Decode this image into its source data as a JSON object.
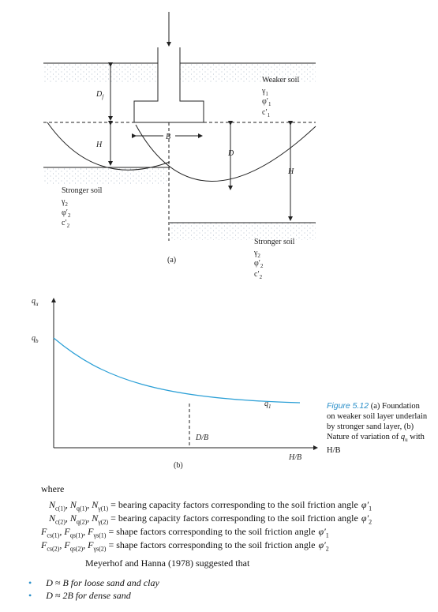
{
  "figure_a": {
    "weaker_soil": {
      "name": "Weaker soil",
      "gamma": {
        "main": "γ",
        "sub": "1"
      },
      "phi": {
        "main": "φ′",
        "sub": "1"
      },
      "c": {
        "main": "c′",
        "sub": "1"
      }
    },
    "df": {
      "main": "D",
      "sub": "f"
    },
    "h_left": "H",
    "b": "B",
    "d": "D",
    "h_right": "H",
    "stronger_left": {
      "name": "Stronger soil",
      "gamma": {
        "main": "γ",
        "sub": "2"
      },
      "phi": {
        "main": "φ′",
        "sub": "2"
      },
      "c": {
        "main": "c′",
        "sub": "2"
      }
    },
    "stronger_right": {
      "name": "Stronger soil",
      "gamma": {
        "main": "γ",
        "sub": "2"
      },
      "phi": {
        "main": "φ′",
        "sub": "2"
      },
      "c": {
        "main": "c′",
        "sub": "2"
      }
    },
    "label": "(a)"
  },
  "figure_b": {
    "y_axis": {
      "main": "q",
      "sub": "u"
    },
    "qb": {
      "main": "q",
      "sub": "b"
    },
    "q1": {
      "main": "q",
      "sub": "1"
    },
    "db": "D/B",
    "x_axis": "H/B",
    "label": "(b)"
  },
  "caption": {
    "label": "Figure 5.12",
    "text": "(a) Foundation on weaker soil layer underlain by stronger sand layer, (b) Nature of variation of",
    "var": {
      "main": "q",
      "sub": "u"
    },
    "tail": "with H/B"
  },
  "body": {
    "where": "where",
    "definitions": [
      {
        "symbols": [
          {
            "main": "N",
            "sub": "c(1)"
          },
          {
            "main": ", N",
            "sub": "q(1)"
          },
          {
            "main": ", N",
            "sub": "γ(1)"
          }
        ],
        "text": "= bearing capacity factors corresponding to the soil friction angle",
        "angle": {
          "main": "φ′",
          "sub": "1"
        }
      },
      {
        "symbols": [
          {
            "main": "N",
            "sub": "c(2)"
          },
          {
            "main": ", N",
            "sub": "q(2)"
          },
          {
            "main": ", N",
            "sub": "γ(2)"
          }
        ],
        "text": "= bearing capacity factors corresponding to the soil friction angle",
        "angle": {
          "main": "φ′",
          "sub": "2"
        }
      },
      {
        "symbols": [
          {
            "main": "F",
            "sub": "cs(1)"
          },
          {
            "main": ", F",
            "sub": "qs(1)"
          },
          {
            "main": ", F",
            "sub": "γs(1)"
          }
        ],
        "text": "= shape factors corresponding to the soil friction angle",
        "angle": {
          "main": "φ′",
          "sub": "1"
        }
      },
      {
        "symbols": [
          {
            "main": "F",
            "sub": "cs(2)"
          },
          {
            "main": ", F",
            "sub": "qs(2)"
          },
          {
            "main": ", F",
            "sub": "γs(2)"
          }
        ],
        "text": "= shape factors corresponding to the soil friction angle",
        "angle": {
          "main": "φ′",
          "sub": "2"
        }
      }
    ],
    "sentence": "Meyerhof and Hanna (1978) suggested that",
    "bullets": [
      "D ≈ B for loose sand and clay",
      "D ≈ 2B for dense sand"
    ]
  }
}
